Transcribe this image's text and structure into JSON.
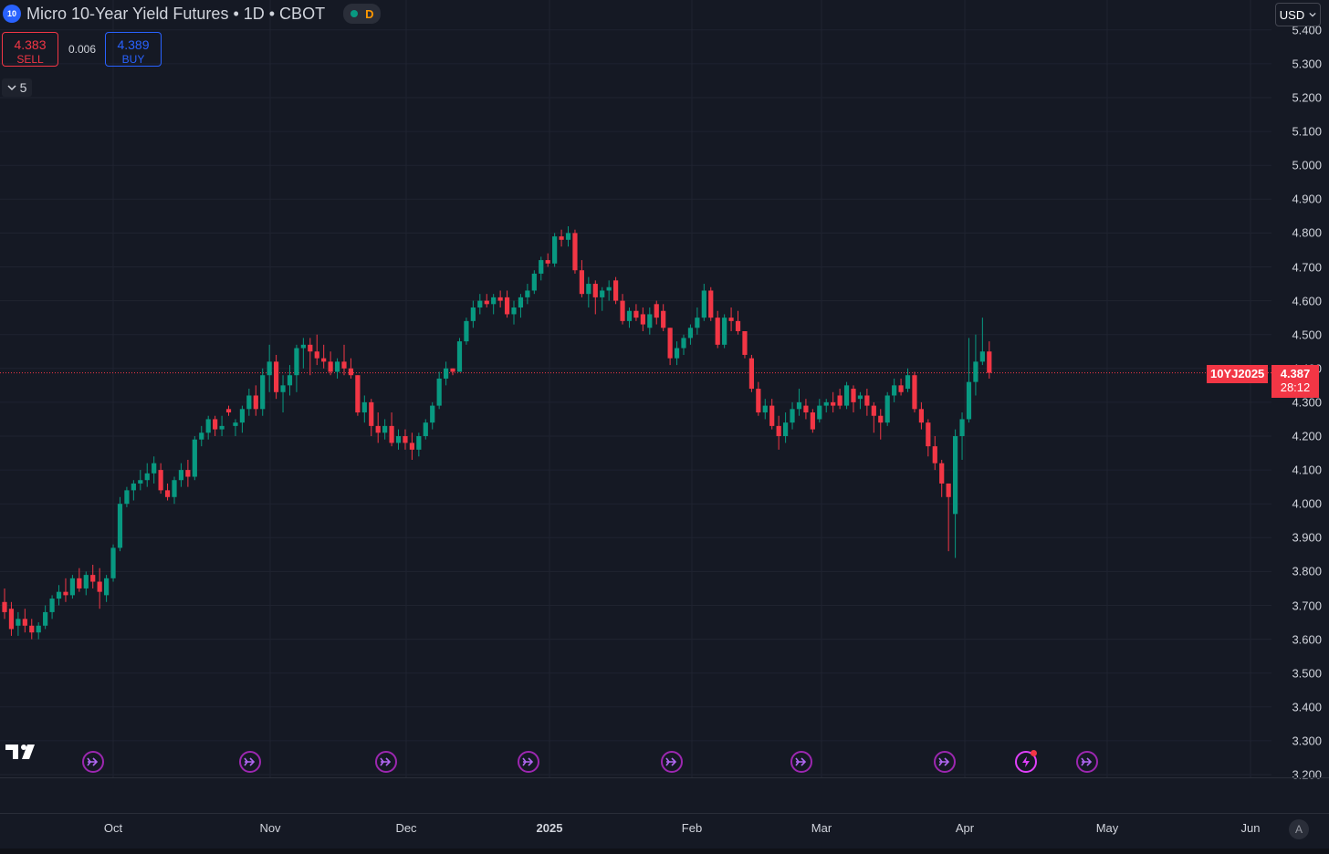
{
  "header": {
    "symbol_logo": "10",
    "title": "Micro 10-Year Yield Futures • 1D • CBOT",
    "status_letter": "D",
    "colors": {
      "status_dot": "#089981",
      "status_letter": "#ff9800"
    }
  },
  "trade": {
    "sell_price": "4.383",
    "sell_label": "SELL",
    "spread": "0.006",
    "buy_price": "4.389",
    "buy_label": "BUY"
  },
  "indicators_toggle": {
    "icon": "chevron-down-icon",
    "count": "5"
  },
  "currency": {
    "label": "USD",
    "icon": "chevron-down-icon"
  },
  "last_price": {
    "symbol": "10YJ2025",
    "price": "4.387",
    "countdown": "28:12"
  },
  "auto_scale": {
    "label": "A"
  },
  "events": [
    {
      "type": "dividend-arrow-icon"
    },
    {
      "type": "dividend-arrow-icon"
    },
    {
      "type": "dividend-arrow-icon"
    },
    {
      "type": "dividend-arrow-icon"
    },
    {
      "type": "dividend-arrow-icon"
    },
    {
      "type": "dividend-arrow-icon"
    },
    {
      "type": "dividend-arrow-icon"
    },
    {
      "type": "flash-icon"
    },
    {
      "type": "dividend-arrow-icon"
    }
  ],
  "colors": {
    "up": "#089981",
    "down": "#f23645",
    "background": "#151924",
    "grid": "#1f2330",
    "price_line": "#f23645"
  },
  "chart_data": {
    "type": "candlestick",
    "title": "Micro 10-Year Yield Futures • 1D • CBOT",
    "y_ticks": [
      "3.200",
      "3.300",
      "3.400",
      "3.500",
      "3.600",
      "3.700",
      "3.800",
      "3.900",
      "4.000",
      "4.100",
      "4.200",
      "4.300",
      "4.400",
      "4.500",
      "4.600",
      "4.700",
      "4.800",
      "4.900",
      "5.000",
      "5.100",
      "5.200",
      "5.300",
      "5.400"
    ],
    "ylim": [
      3.2,
      5.41
    ],
    "x_labels": [
      "Oct",
      "Nov",
      "Dec",
      "2025",
      "Feb",
      "Mar",
      "Apr",
      "May",
      "Jun"
    ],
    "grid": true,
    "ohlc": [
      [
        3.71,
        3.75,
        3.66,
        3.68
      ],
      [
        3.69,
        3.71,
        3.61,
        3.63
      ],
      [
        3.64,
        3.68,
        3.61,
        3.66
      ],
      [
        3.66,
        3.69,
        3.62,
        3.64
      ],
      [
        3.64,
        3.66,
        3.6,
        3.62
      ],
      [
        3.62,
        3.65,
        3.6,
        3.64
      ],
      [
        3.64,
        3.7,
        3.63,
        3.68
      ],
      [
        3.68,
        3.73,
        3.66,
        3.72
      ],
      [
        3.72,
        3.76,
        3.7,
        3.74
      ],
      [
        3.74,
        3.78,
        3.71,
        3.73
      ],
      [
        3.73,
        3.79,
        3.72,
        3.78
      ],
      [
        3.78,
        3.81,
        3.74,
        3.75
      ],
      [
        3.75,
        3.8,
        3.73,
        3.79
      ],
      [
        3.79,
        3.82,
        3.75,
        3.77
      ],
      [
        3.77,
        3.81,
        3.69,
        3.74
      ],
      [
        3.73,
        3.79,
        3.71,
        3.78
      ],
      [
        3.78,
        3.88,
        3.77,
        3.87
      ],
      [
        3.87,
        4.02,
        3.86,
        4.0
      ],
      [
        4.0,
        4.05,
        3.99,
        4.04
      ],
      [
        4.04,
        4.07,
        4.01,
        4.06
      ],
      [
        4.06,
        4.1,
        4.04,
        4.07
      ],
      [
        4.07,
        4.12,
        4.05,
        4.09
      ],
      [
        4.09,
        4.14,
        4.06,
        4.12
      ],
      [
        4.1,
        4.12,
        4.03,
        4.04
      ],
      [
        4.04,
        4.06,
        4.01,
        4.02
      ],
      [
        4.02,
        4.08,
        4.0,
        4.07
      ],
      [
        4.07,
        4.12,
        4.05,
        4.1
      ],
      [
        4.1,
        4.13,
        4.05,
        4.08
      ],
      [
        4.08,
        4.2,
        4.07,
        4.19
      ],
      [
        4.19,
        4.23,
        4.17,
        4.21
      ],
      [
        4.21,
        4.26,
        4.19,
        4.25
      ],
      [
        4.25,
        4.26,
        4.2,
        4.22
      ],
      [
        4.22,
        4.26,
        4.2,
        4.23
      ],
      [
        4.28,
        4.29,
        4.26,
        4.27
      ],
      [
        4.23,
        4.25,
        4.2,
        4.24
      ],
      [
        4.24,
        4.29,
        4.21,
        4.28
      ],
      [
        4.28,
        4.34,
        4.26,
        4.32
      ],
      [
        4.32,
        4.35,
        4.26,
        4.28
      ],
      [
        4.28,
        4.4,
        4.26,
        4.38
      ],
      [
        4.38,
        4.47,
        4.33,
        4.42
      ],
      [
        4.42,
        4.44,
        4.31,
        4.33
      ],
      [
        4.33,
        4.38,
        4.27,
        4.35
      ],
      [
        4.35,
        4.41,
        4.32,
        4.38
      ],
      [
        4.38,
        4.47,
        4.33,
        4.46
      ],
      [
        4.46,
        4.49,
        4.4,
        4.47
      ],
      [
        4.47,
        4.49,
        4.38,
        4.45
      ],
      [
        4.45,
        4.5,
        4.41,
        4.43
      ],
      [
        4.43,
        4.47,
        4.4,
        4.42
      ],
      [
        4.42,
        4.45,
        4.38,
        4.39
      ],
      [
        4.39,
        4.43,
        4.37,
        4.42
      ],
      [
        4.42,
        4.47,
        4.38,
        4.4
      ],
      [
        4.4,
        4.43,
        4.37,
        4.38
      ],
      [
        4.38,
        4.38,
        4.26,
        4.27
      ],
      [
        4.27,
        4.32,
        4.24,
        4.3
      ],
      [
        4.3,
        4.31,
        4.2,
        4.23
      ],
      [
        4.23,
        4.27,
        4.18,
        4.21
      ],
      [
        4.21,
        4.25,
        4.19,
        4.23
      ],
      [
        4.23,
        4.27,
        4.17,
        4.18
      ],
      [
        4.18,
        4.22,
        4.16,
        4.2
      ],
      [
        4.2,
        4.22,
        4.16,
        4.18
      ],
      [
        4.18,
        4.21,
        4.13,
        4.16
      ],
      [
        4.16,
        4.21,
        4.14,
        4.2
      ],
      [
        4.2,
        4.25,
        4.19,
        4.24
      ],
      [
        4.24,
        4.3,
        4.22,
        4.29
      ],
      [
        4.29,
        4.39,
        4.28,
        4.37
      ],
      [
        4.37,
        4.42,
        4.35,
        4.4
      ],
      [
        4.4,
        4.4,
        4.38,
        4.39
      ],
      [
        4.39,
        4.49,
        4.39,
        4.48
      ],
      [
        4.48,
        4.55,
        4.47,
        4.54
      ],
      [
        4.54,
        4.6,
        4.52,
        4.58
      ],
      [
        4.58,
        4.62,
        4.56,
        4.6
      ],
      [
        4.6,
        4.62,
        4.58,
        4.59
      ],
      [
        4.59,
        4.62,
        4.56,
        4.61
      ],
      [
        4.61,
        4.63,
        4.58,
        4.6
      ],
      [
        4.61,
        4.63,
        4.55,
        4.56
      ],
      [
        4.56,
        4.6,
        4.53,
        4.58
      ],
      [
        4.58,
        4.62,
        4.55,
        4.61
      ],
      [
        4.61,
        4.65,
        4.59,
        4.63
      ],
      [
        4.63,
        4.69,
        4.62,
        4.68
      ],
      [
        4.68,
        4.73,
        4.66,
        4.72
      ],
      [
        4.72,
        4.74,
        4.7,
        4.71
      ],
      [
        4.71,
        4.8,
        4.7,
        4.79
      ],
      [
        4.79,
        4.81,
        4.76,
        4.78
      ],
      [
        4.78,
        4.82,
        4.76,
        4.8
      ],
      [
        4.8,
        4.81,
        4.68,
        4.69
      ],
      [
        4.69,
        4.72,
        4.61,
        4.62
      ],
      [
        4.62,
        4.67,
        4.58,
        4.65
      ],
      [
        4.65,
        4.66,
        4.56,
        4.61
      ],
      [
        4.61,
        4.64,
        4.57,
        4.63
      ],
      [
        4.63,
        4.66,
        4.6,
        4.64
      ],
      [
        4.66,
        4.67,
        4.59,
        4.6
      ],
      [
        4.6,
        4.62,
        4.53,
        4.54
      ],
      [
        4.54,
        4.58,
        4.52,
        4.57
      ],
      [
        4.57,
        4.59,
        4.54,
        4.55
      ],
      [
        4.56,
        4.58,
        4.51,
        4.53
      ],
      [
        4.52,
        4.58,
        4.5,
        4.56
      ],
      [
        4.59,
        4.6,
        4.53,
        4.55
      ],
      [
        4.57,
        4.59,
        4.51,
        4.52
      ],
      [
        4.52,
        4.52,
        4.41,
        4.43
      ],
      [
        4.43,
        4.48,
        4.41,
        4.46
      ],
      [
        4.46,
        4.5,
        4.44,
        4.49
      ],
      [
        4.49,
        4.53,
        4.47,
        4.52
      ],
      [
        4.52,
        4.58,
        4.5,
        4.55
      ],
      [
        4.55,
        4.65,
        4.54,
        4.63
      ],
      [
        4.63,
        4.64,
        4.54,
        4.55
      ],
      [
        4.55,
        4.57,
        4.46,
        4.47
      ],
      [
        4.47,
        4.56,
        4.46,
        4.55
      ],
      [
        4.55,
        4.58,
        4.51,
        4.54
      ],
      [
        4.54,
        4.57,
        4.5,
        4.51
      ],
      [
        4.51,
        4.51,
        4.43,
        4.44
      ],
      [
        4.43,
        4.44,
        4.33,
        4.34
      ],
      [
        4.34,
        4.36,
        4.26,
        4.27
      ],
      [
        4.27,
        4.31,
        4.25,
        4.29
      ],
      [
        4.29,
        4.31,
        4.22,
        4.23
      ],
      [
        4.23,
        4.26,
        4.16,
        4.2
      ],
      [
        4.2,
        4.27,
        4.18,
        4.24
      ],
      [
        4.24,
        4.3,
        4.22,
        4.28
      ],
      [
        4.28,
        4.34,
        4.26,
        4.3
      ],
      [
        4.29,
        4.31,
        4.25,
        4.27
      ],
      [
        4.27,
        4.28,
        4.21,
        4.22
      ],
      [
        4.25,
        4.31,
        4.24,
        4.29
      ],
      [
        4.29,
        4.31,
        4.27,
        4.3
      ],
      [
        4.3,
        4.33,
        4.27,
        4.29
      ],
      [
        4.32,
        4.34,
        4.28,
        4.29
      ],
      [
        4.29,
        4.36,
        4.28,
        4.35
      ],
      [
        4.34,
        4.35,
        4.27,
        4.3
      ],
      [
        4.31,
        4.33,
        4.28,
        4.32
      ],
      [
        4.32,
        4.34,
        4.26,
        4.29
      ],
      [
        4.29,
        4.3,
        4.21,
        4.26
      ],
      [
        4.26,
        4.28,
        4.19,
        4.24
      ],
      [
        4.24,
        4.33,
        4.23,
        4.32
      ],
      [
        4.32,
        4.37,
        4.3,
        4.35
      ],
      [
        4.35,
        4.37,
        4.32,
        4.33
      ],
      [
        4.34,
        4.4,
        4.33,
        4.38
      ],
      [
        4.38,
        4.39,
        4.27,
        4.28
      ],
      [
        4.28,
        4.3,
        4.22,
        4.24
      ],
      [
        4.24,
        4.25,
        4.14,
        4.17
      ],
      [
        4.17,
        4.2,
        4.1,
        4.12
      ],
      [
        4.12,
        4.13,
        4.02,
        4.06
      ],
      [
        4.06,
        4.06,
        3.86,
        4.02
      ],
      [
        3.97,
        4.22,
        3.84,
        4.2
      ],
      [
        4.2,
        4.27,
        4.13,
        4.25
      ],
      [
        4.25,
        4.49,
        4.24,
        4.36
      ],
      [
        4.36,
        4.5,
        4.32,
        4.42
      ],
      [
        4.42,
        4.55,
        4.41,
        4.45
      ],
      [
        4.45,
        4.48,
        4.37,
        4.387
      ]
    ]
  }
}
